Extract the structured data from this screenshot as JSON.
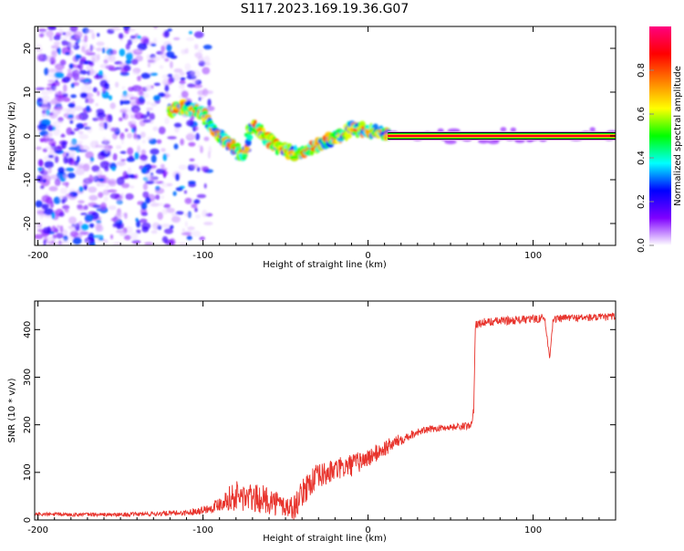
{
  "title": "S117.2023.169.19.36.G07",
  "chart_data": [
    {
      "type": "heatmap",
      "title": "S117.2023.169.19.36.G07",
      "xlabel": "Height of straight line (km)",
      "ylabel": "Frequency (Hz)",
      "xlim": [
        -202,
        150
      ],
      "ylim": [
        -25,
        25
      ],
      "x_ticks": [
        -200,
        -100,
        0,
        100
      ],
      "y_ticks": [
        -20,
        -10,
        0,
        10,
        20
      ],
      "colorbar": {
        "label": "Normalized spectral amplitude",
        "range": [
          0,
          1
        ],
        "ticks": [
          "0.0",
          "0.2",
          "0.4",
          "0.6",
          "0.8"
        ],
        "colors": [
          "#ffffff",
          "#7f00ff",
          "#0000ff",
          "#00ffff",
          "#00ff00",
          "#ffff00",
          "#ff7f00",
          "#ff0000",
          "#ff0080"
        ]
      },
      "ridge": {
        "x": [
          -120,
          -110,
          -100,
          -90,
          -80,
          -75,
          -70,
          -65,
          -60,
          -55,
          -50,
          -45,
          -40,
          -35,
          -30,
          -25,
          -20,
          -15,
          -10,
          -5,
          0,
          5,
          10,
          15,
          20,
          150
        ],
        "y": [
          6,
          6.5,
          5,
          0,
          -3,
          -5,
          3,
          1,
          -1,
          -2.5,
          -3,
          -4,
          -4,
          -3,
          -2,
          -1,
          -0.5,
          0.5,
          1.5,
          1.5,
          1,
          1,
          0.5,
          0,
          0,
          0
        ]
      },
      "noise_region_x": [
        -200,
        -95
      ],
      "grid": false,
      "legend": "colorbar-right"
    },
    {
      "type": "line",
      "xlabel": "Height of straight line (km)",
      "ylabel": "SNR (10 * v/v)",
      "xlim": [
        -202,
        150
      ],
      "ylim": [
        0,
        460
      ],
      "x_ticks": [
        -200,
        -100,
        0,
        100
      ],
      "y_ticks": [
        0,
        100,
        200,
        300,
        400
      ],
      "series": [
        {
          "color": "#e8332c",
          "x": [
            -202,
            -150,
            -110,
            -95,
            -85,
            -80,
            -70,
            -60,
            -50,
            -45,
            -40,
            -35,
            -30,
            -20,
            -10,
            0,
            10,
            20,
            30,
            40,
            50,
            62,
            64,
            65,
            70,
            80,
            90,
            100,
            107,
            110,
            112,
            120,
            130,
            140,
            150
          ],
          "y": [
            12,
            11,
            15,
            25,
            45,
            50,
            45,
            42,
            28,
            25,
            55,
            80,
            90,
            105,
            115,
            130,
            150,
            170,
            185,
            192,
            195,
            198,
            230,
            410,
            415,
            418,
            420,
            422,
            425,
            340,
            420,
            425,
            425,
            425,
            428
          ],
          "noise": [
            4,
            4,
            6,
            10,
            24,
            34,
            30,
            30,
            24,
            28,
            28,
            32,
            28,
            24,
            24,
            20,
            18,
            12,
            8,
            7,
            7,
            8,
            10,
            9,
            9,
            9,
            9,
            9,
            9,
            4,
            9,
            8,
            8,
            8,
            8
          ]
        }
      ],
      "grid": false
    }
  ]
}
